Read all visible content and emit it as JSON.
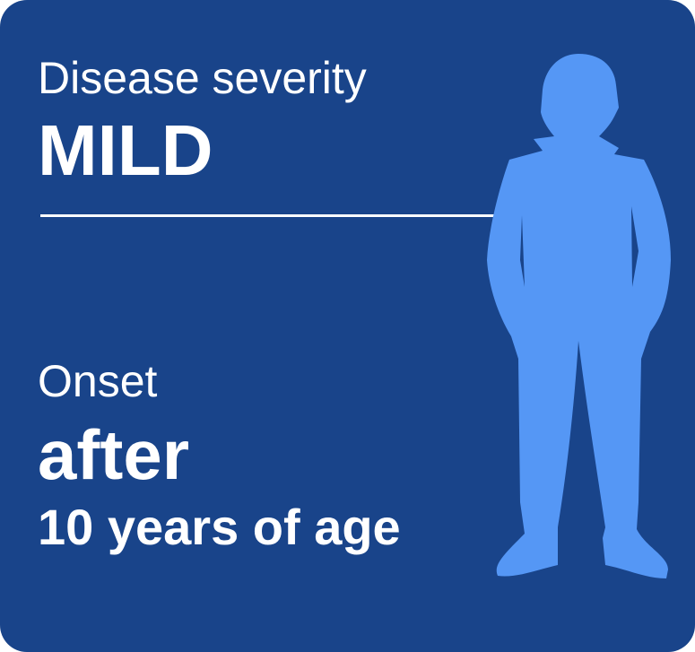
{
  "severity": {
    "label": "Disease severity",
    "value": "MILD"
  },
  "onset": {
    "label": "Onset",
    "value": "after",
    "detail": "10 years of age"
  },
  "colors": {
    "background": "#19448a",
    "figure": "#5597f5",
    "text": "#ffffff"
  },
  "icons": {
    "figure": "person-silhouette-icon"
  }
}
